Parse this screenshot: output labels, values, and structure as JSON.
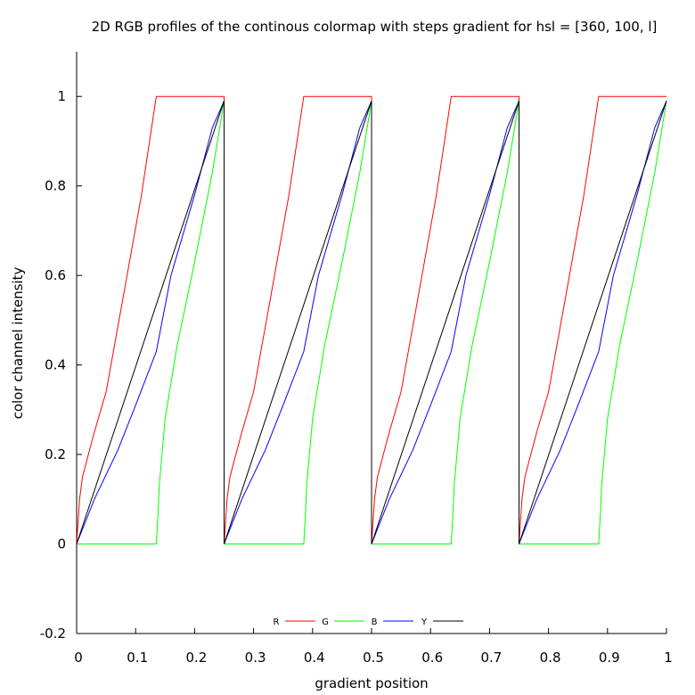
{
  "chart_data": {
    "type": "line",
    "title": "2D RGB profiles of the continous colormap with steps gradient for hsl = [360, 100, l]",
    "xlabel": "gradient position",
    "ylabel": "color channel intensity",
    "xlim": [
      0,
      1
    ],
    "ylim": [
      -0.2,
      1.1
    ],
    "xticks": [
      0,
      0.1,
      0.2,
      0.3,
      0.4,
      0.5,
      0.6,
      0.7,
      0.8,
      0.9,
      1
    ],
    "xtick_labels": [
      "0",
      "0.1",
      "0.2",
      "0.3",
      "0.4",
      "0.5",
      "0.6",
      "0.7",
      "0.8",
      "0.9",
      "1"
    ],
    "yticks": [
      -0.2,
      0,
      0.2,
      0.4,
      0.6,
      0.8,
      1
    ],
    "ytick_labels": [
      "-0.2",
      "0",
      "0.2",
      "0.4",
      "0.6",
      "0.8",
      "1"
    ],
    "grid": false,
    "legend_position": "bottom-center",
    "series": [
      {
        "name": "R",
        "color": "#ff0000",
        "x": [
          0,
          0.005,
          0.01,
          0.02,
          0.03,
          0.05,
          0.08,
          0.11,
          0.135,
          0.25,
          0.25,
          0.255,
          0.26,
          0.27,
          0.28,
          0.3,
          0.33,
          0.36,
          0.385,
          0.5,
          0.5,
          0.505,
          0.51,
          0.52,
          0.53,
          0.55,
          0.58,
          0.61,
          0.635,
          0.75,
          0.75,
          0.755,
          0.76,
          0.77,
          0.78,
          0.8,
          0.83,
          0.86,
          0.885,
          1.0
        ],
        "y": [
          0,
          0.1,
          0.15,
          0.2,
          0.25,
          0.34,
          0.56,
          0.78,
          1,
          1,
          0,
          0.1,
          0.15,
          0.2,
          0.25,
          0.34,
          0.56,
          0.78,
          1,
          1,
          0,
          0.1,
          0.15,
          0.2,
          0.25,
          0.34,
          0.56,
          0.78,
          1,
          1,
          0,
          0.1,
          0.15,
          0.2,
          0.25,
          0.34,
          0.56,
          0.78,
          1,
          1
        ]
      },
      {
        "name": "G",
        "color": "#00ff00",
        "x": [
          0,
          0.135,
          0.138,
          0.14,
          0.15,
          0.17,
          0.2,
          0.23,
          0.25,
          0.25,
          0.385,
          0.388,
          0.39,
          0.4,
          0.42,
          0.45,
          0.48,
          0.5,
          0.5,
          0.635,
          0.638,
          0.64,
          0.65,
          0.67,
          0.7,
          0.73,
          0.75,
          0.75,
          0.885,
          0.888,
          0.89,
          0.9,
          0.92,
          0.95,
          0.98,
          1.0
        ],
        "y": [
          0,
          0,
          0.07,
          0.13,
          0.28,
          0.44,
          0.63,
          0.83,
          0.99,
          0,
          0,
          0.07,
          0.13,
          0.28,
          0.44,
          0.63,
          0.83,
          0.99,
          0,
          0,
          0.07,
          0.13,
          0.28,
          0.44,
          0.63,
          0.83,
          0.99,
          0,
          0,
          0.07,
          0.13,
          0.28,
          0.44,
          0.63,
          0.83,
          0.99
        ]
      },
      {
        "name": "B",
        "color": "#0000ff",
        "x": [
          0,
          0.03,
          0.07,
          0.1,
          0.135,
          0.16,
          0.2,
          0.23,
          0.25,
          0.25,
          0.28,
          0.32,
          0.35,
          0.385,
          0.41,
          0.45,
          0.48,
          0.5,
          0.5,
          0.53,
          0.57,
          0.6,
          0.635,
          0.66,
          0.7,
          0.73,
          0.75,
          0.75,
          0.78,
          0.82,
          0.85,
          0.885,
          0.91,
          0.95,
          0.98,
          1.0
        ],
        "y": [
          0,
          0.1,
          0.21,
          0.31,
          0.43,
          0.6,
          0.78,
          0.93,
          0.99,
          0,
          0.1,
          0.21,
          0.31,
          0.43,
          0.6,
          0.78,
          0.93,
          0.99,
          0,
          0.1,
          0.21,
          0.31,
          0.43,
          0.6,
          0.78,
          0.93,
          0.99,
          0,
          0.1,
          0.21,
          0.31,
          0.43,
          0.6,
          0.78,
          0.93,
          0.99
        ]
      },
      {
        "name": "Y",
        "color": "#000000",
        "x": [
          0,
          0.25,
          0.25,
          0.5,
          0.5,
          0.75,
          0.75,
          1.0
        ],
        "y": [
          0,
          0.99,
          0,
          0.99,
          0,
          0.99,
          0,
          0.99
        ]
      }
    ]
  }
}
